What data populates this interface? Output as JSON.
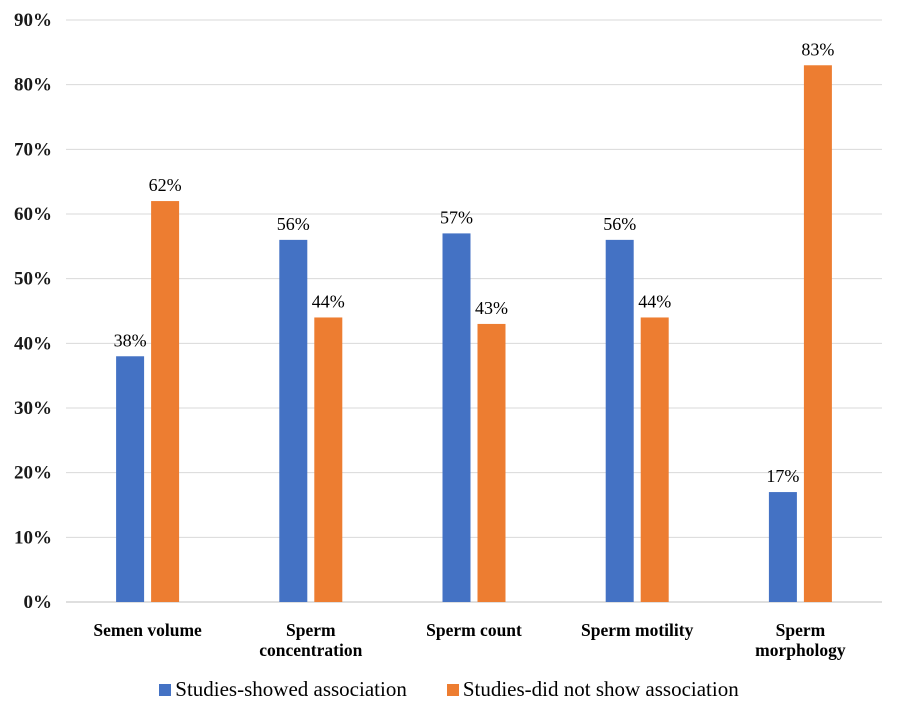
{
  "chart_data": {
    "type": "bar",
    "categories": [
      [
        "Semen volume"
      ],
      [
        "Sperm",
        "concentration"
      ],
      [
        "Sperm count"
      ],
      [
        "Sperm motility"
      ],
      [
        "Sperm",
        "morphology"
      ]
    ],
    "series": [
      {
        "name": "Studies-showed association",
        "values": [
          38,
          56,
          57,
          56,
          17
        ],
        "labels": [
          "38%",
          "56%",
          "57%",
          "56%",
          "17%"
        ],
        "color": "#4472C4"
      },
      {
        "name": "Studies-did not show association",
        "values": [
          62,
          44,
          43,
          44,
          83
        ],
        "labels": [
          "62%",
          "44%",
          "43%",
          "44%",
          "83%"
        ],
        "color": "#ED7D31"
      }
    ],
    "ylim": [
      0,
      90
    ],
    "yticks": [
      "0%",
      "10%",
      "20%",
      "30%",
      "40%",
      "50%",
      "60%",
      "70%",
      "80%",
      "90%"
    ],
    "grid": true,
    "legend_position": "bottom"
  }
}
